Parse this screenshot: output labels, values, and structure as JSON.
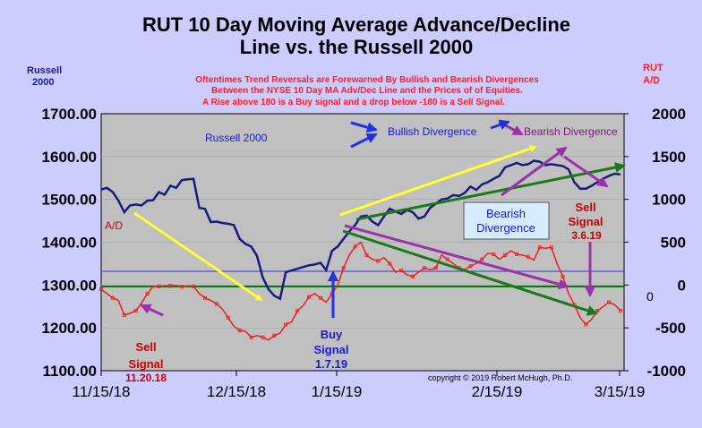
{
  "chart_data": {
    "type": "line",
    "title_line1": "RUT 10 Day Moving Average Advance/Decline",
    "title_line2": "Line vs. the Russell 2000",
    "note_lines": [
      "Oftentimes Trend Reversals are Forewarned By Bullish and Bearish Divergences",
      "Between the NYSE 10 Day MA Adv/Dec Line and the Prices of of Equities.",
      "A Rise above 180 is a Buy signal and a drop below -180 is a Sell Signal."
    ],
    "left_axis_label": [
      "Russell",
      "2000"
    ],
    "right_axis_label": [
      "RUT",
      "A/D"
    ],
    "left_ticks": [
      "1700.00",
      "1600.00",
      "1500.00",
      "1400.00",
      "1300.00",
      "1200.00",
      "1100.00"
    ],
    "left_tick_values": [
      1700,
      1600,
      1500,
      1400,
      1300,
      1200,
      1100
    ],
    "right_ticks": [
      "2000",
      "1500",
      "1000",
      "500",
      "0",
      "-500",
      "-1000"
    ],
    "right_tick_values": [
      2000,
      1500,
      1000,
      500,
      0,
      -500,
      -1000
    ],
    "x_ticks": [
      "11/15/18",
      "12/15/18",
      "1/15/19",
      "2/15/19",
      "3/15/19"
    ],
    "left_ylim": [
      1100,
      1700
    ],
    "right_ylim": [
      -1000,
      2000
    ],
    "series": [
      {
        "name": "Russell 2000",
        "axis": "left",
        "color": "#1a1a80",
        "values": [
          1523,
          1527,
          1517,
          1497,
          1470,
          1486,
          1488,
          1486,
          1497,
          1498,
          1517,
          1511,
          1532,
          1527,
          1545,
          1547,
          1548,
          1480,
          1478,
          1447,
          1448,
          1445,
          1443,
          1440,
          1408,
          1396,
          1390,
          1368,
          1318,
          1290,
          1275,
          1268,
          1330,
          1334,
          1338,
          1342,
          1346,
          1348,
          1352,
          1335,
          1380,
          1390,
          1408,
          1425,
          1440,
          1460,
          1462,
          1448,
          1440,
          1460,
          1478,
          1472,
          1466,
          1475,
          1470,
          1455,
          1460,
          1480,
          1490,
          1500,
          1502,
          1510,
          1508,
          1515,
          1530,
          1522,
          1535,
          1540,
          1548,
          1555,
          1575,
          1580,
          1585,
          1580,
          1582,
          1590,
          1588,
          1580,
          1582,
          1580,
          1578,
          1570,
          1540,
          1525,
          1525,
          1532,
          1540,
          1548,
          1555,
          1560,
          1558
        ]
      },
      {
        "name": "A/D",
        "axis": "right",
        "color": "#ee2020",
        "values": [
          -50,
          -100,
          -150,
          -180,
          -350,
          -330,
          -300,
          -210,
          -100,
          -20,
          -15,
          -10,
          -10,
          -5,
          -20,
          -10,
          -15,
          -100,
          -150,
          -180,
          -220,
          -280,
          -380,
          -480,
          -530,
          -540,
          -610,
          -590,
          -610,
          -640,
          -590,
          -560,
          -460,
          -430,
          -300,
          -240,
          -140,
          -100,
          -150,
          -200,
          -100,
          0,
          200,
          350,
          450,
          500,
          350,
          300,
          280,
          320,
          250,
          150,
          170,
          120,
          100,
          150,
          200,
          180,
          200,
          350,
          300,
          250,
          200,
          180,
          220,
          250,
          300,
          370,
          360,
          300,
          350,
          400,
          360,
          350,
          330,
          290,
          440,
          430,
          440,
          250,
          100,
          -100,
          -230,
          -380,
          -460,
          -400,
          -300,
          -250,
          -200,
          -230,
          -300
        ]
      }
    ],
    "annotations": {
      "russell_label": "Russell 2000",
      "ad_label": "A/D",
      "bullish": "Bullish Divergence",
      "bearish_top": "Bearish Divergence",
      "bearish_box": [
        "Bearish",
        "Divergence"
      ],
      "sell1": [
        "Sell",
        "Signal",
        "11.20.18"
      ],
      "buy": [
        "Buy",
        "Signal",
        "1.7.19"
      ],
      "sell2": [
        "Sell",
        "Signal",
        "3.6.19"
      ],
      "copyright": "copyright © 2019 Robert McHugh, Ph.D.",
      "zero_label": "0"
    },
    "colors": {
      "background": "#ccccff",
      "plot_bg": "#c0c0c0",
      "blue_series": "#1a1a80",
      "red_series": "#ee2020",
      "green_zero": "#008000",
      "buy_line": "#3333cc",
      "yellow_arrow": "#ffff33",
      "purple_arrow": "#9933aa",
      "green_arrow": "#1a7a1a"
    },
    "grid": true
  }
}
